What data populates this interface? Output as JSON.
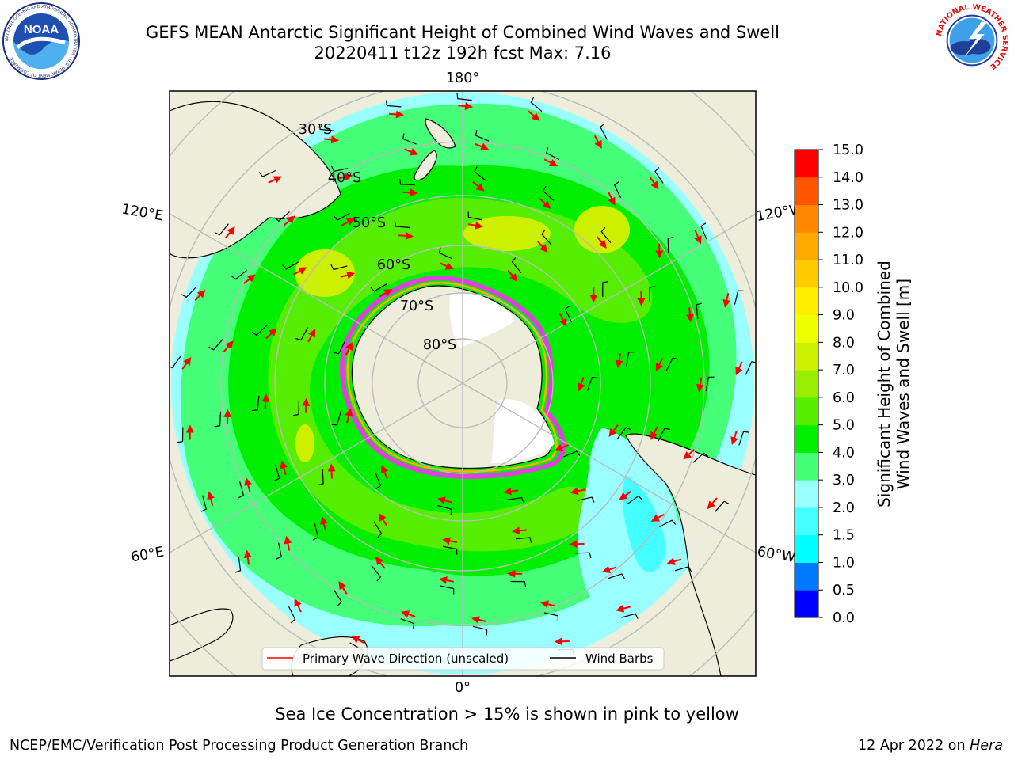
{
  "title_line1": "GEFS MEAN Antarctic Significant Height of Combined Wind Waves and Swell",
  "title_line2": "20220411 t12z 192h fcst   Max: 7.16",
  "logos": {
    "left": {
      "name": "noaa-logo",
      "text": "NOAA",
      "ring_text": "NATIONAL OCEANIC AND ATMOSPHERIC ADMINISTRATION · U.S. DEPARTMENT OF COMMERCE"
    },
    "right": {
      "name": "nws-logo",
      "ring_text": "NATIONAL WEATHER SERVICE"
    }
  },
  "map": {
    "projection": "south-polar-stereographic",
    "longitude_labels": [
      "180°",
      "120°E",
      "120°W",
      "60°E",
      "60°W",
      "0°"
    ],
    "latitude_labels": [
      "30°S",
      "40°S",
      "50°S",
      "60°S",
      "70°S",
      "80°S"
    ],
    "legend": {
      "wave_direction": "Primary Wave Direction (unscaled)",
      "wind_barbs": "Wind Barbs"
    },
    "colors": {
      "land": "#eeeddc",
      "ice_free_ocean": "#ffffff",
      "arrow": "#ff0000",
      "barb": "#000000",
      "ice_edge": "#e040e0",
      "ice_edge_inner": "#ffb000",
      "grid": "#bbbbbb"
    }
  },
  "colorbar": {
    "label_line1": "Significant Height of Combined",
    "label_line2": "Wind Waves and Swell [m]",
    "ticks": [
      "0.0",
      "0.5",
      "1.0",
      "1.5",
      "2.0",
      "3.0",
      "4.0",
      "5.0",
      "6.0",
      "7.0",
      "8.0",
      "9.0",
      "10.0",
      "11.0",
      "12.0",
      "13.0",
      "14.0",
      "15.0"
    ],
    "colors": [
      "#0000ff",
      "#0078ff",
      "#00ffff",
      "#44ffff",
      "#99ffff",
      "#44ff77",
      "#00ee00",
      "#55ee00",
      "#99ee00",
      "#ccf000",
      "#eeff00",
      "#ffee00",
      "#ffcc00",
      "#ffaa00",
      "#ff8800",
      "#ff5500",
      "#ff0000"
    ]
  },
  "field_summary": {
    "max_m": 7.16
  },
  "caption": "Sea Ice Concentration > 15% is shown in pink to yellow",
  "footer_left": "NCEP/EMC/Verification Post Processing Product Generation Branch",
  "footer_date": "12 Apr 2022 on ",
  "footer_host": "Hera"
}
